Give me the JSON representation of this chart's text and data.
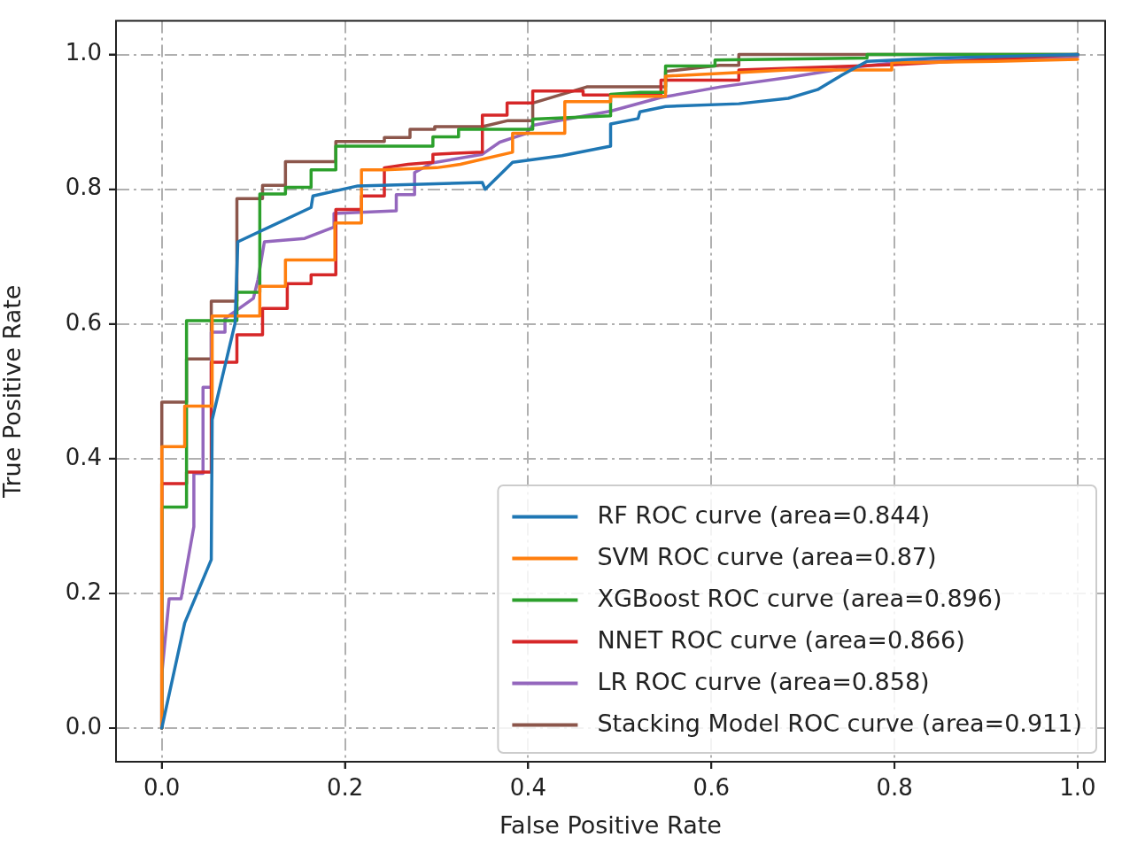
{
  "chart_data": {
    "type": "line",
    "xlabel": "False Positive Rate",
    "ylabel": "True Positive Rate",
    "xlim": [
      -0.05,
      1.03
    ],
    "ylim": [
      -0.05,
      1.05
    ],
    "xticks": [
      {
        "value": 0,
        "label": "0.0"
      },
      {
        "value": 0.2,
        "label": "0.2"
      },
      {
        "value": 0.4,
        "label": "0.4"
      },
      {
        "value": 0.6,
        "label": "0.6"
      },
      {
        "value": 0.8,
        "label": "0.8"
      },
      {
        "value": 1,
        "label": "1.0"
      }
    ],
    "yticks": [
      {
        "value": 0,
        "label": "0.0"
      },
      {
        "value": 0.2,
        "label": "0.2"
      },
      {
        "value": 0.4,
        "label": "0.4"
      },
      {
        "value": 0.6,
        "label": "0.6"
      },
      {
        "value": 0.8,
        "label": "0.8"
      },
      {
        "value": 1,
        "label": "1.0"
      }
    ],
    "grid": true,
    "legend": "bottom right",
    "line_style": "solid",
    "series": [
      {
        "name": "RF ROC curve (area=0.844)",
        "color": "#1f77b4",
        "x": [
          0,
          0.025,
          0.054,
          0.055,
          0.08,
          0.083,
          0.163,
          0.165,
          0.214,
          0.35,
          0.353,
          0.383,
          0.437,
          0.49,
          0.49,
          0.52,
          0.522,
          0.55,
          0.63,
          0.684,
          0.716,
          0.743,
          0.77,
          0.85,
          1
        ],
        "values": [
          0,
          0.156,
          0.25,
          0.458,
          0.601,
          0.722,
          0.773,
          0.79,
          0.805,
          0.81,
          0.8,
          0.84,
          0.85,
          0.864,
          0.897,
          0.905,
          0.915,
          0.923,
          0.927,
          0.935,
          0.948,
          0.97,
          0.99,
          0.995,
          1
        ]
      },
      {
        "name": "SVM ROC curve (area=0.87)",
        "color": "#ff7f0e",
        "x": [
          0,
          0,
          0.025,
          0.025,
          0.055,
          0.055,
          0.107,
          0.107,
          0.135,
          0.135,
          0.189,
          0.189,
          0.218,
          0.218,
          0.243,
          0.3,
          0.326,
          0.383,
          0.383,
          0.44,
          0.44,
          0.49,
          0.49,
          0.55,
          0.55,
          0.684,
          0.797,
          0.797,
          0.91,
          1
        ],
        "values": [
          0,
          0.418,
          0.418,
          0.478,
          0.478,
          0.612,
          0.612,
          0.656,
          0.656,
          0.695,
          0.695,
          0.75,
          0.75,
          0.829,
          0.829,
          0.832,
          0.837,
          0.855,
          0.883,
          0.883,
          0.93,
          0.93,
          0.938,
          0.938,
          0.968,
          0.977,
          0.977,
          0.988,
          0.99,
          0.993
        ]
      },
      {
        "name": "XGBoost ROC curve (area=0.896)",
        "color": "#2ca02c",
        "x": [
          0,
          0,
          0.027,
          0.027,
          0.082,
          0.082,
          0.107,
          0.107,
          0.135,
          0.135,
          0.163,
          0.163,
          0.19,
          0.19,
          0.296,
          0.296,
          0.324,
          0.324,
          0.405,
          0.405,
          0.49,
          0.49,
          0.523,
          0.55,
          0.55,
          0.604,
          0.604,
          0.77,
          0.77,
          1
        ],
        "values": [
          0,
          0.328,
          0.328,
          0.605,
          0.605,
          0.647,
          0.647,
          0.793,
          0.793,
          0.803,
          0.803,
          0.829,
          0.829,
          0.864,
          0.864,
          0.878,
          0.878,
          0.889,
          0.889,
          0.904,
          0.909,
          0.941,
          0.944,
          0.944,
          0.983,
          0.983,
          0.992,
          0.995,
          1,
          1
        ]
      },
      {
        "name": "NNET ROC curve (area=0.866)",
        "color": "#d62728",
        "x": [
          0,
          0,
          0.027,
          0.027,
          0.054,
          0.054,
          0.082,
          0.082,
          0.11,
          0.11,
          0.137,
          0.137,
          0.163,
          0.163,
          0.19,
          0.19,
          0.218,
          0.218,
          0.243,
          0.243,
          0.269,
          0.296,
          0.296,
          0.35,
          0.35,
          0.377,
          0.377,
          0.405,
          0.405,
          0.46,
          0.46,
          0.545,
          0.545,
          0.63,
          0.63,
          0.8,
          1
        ],
        "values": [
          0,
          0.363,
          0.363,
          0.38,
          0.38,
          0.543,
          0.543,
          0.584,
          0.584,
          0.623,
          0.623,
          0.66,
          0.66,
          0.673,
          0.673,
          0.77,
          0.77,
          0.79,
          0.79,
          0.832,
          0.837,
          0.84,
          0.852,
          0.855,
          0.91,
          0.91,
          0.928,
          0.928,
          0.946,
          0.946,
          0.94,
          0.94,
          0.962,
          0.962,
          0.977,
          0.985,
          1
        ]
      },
      {
        "name": "LR ROC curve (area=0.858)",
        "color": "#9467bd",
        "x": [
          0,
          0,
          0.008,
          0.021,
          0.035,
          0.035,
          0.045,
          0.045,
          0.054,
          0.054,
          0.069,
          0.069,
          0.1,
          0.105,
          0.112,
          0.156,
          0.188,
          0.188,
          0.256,
          0.256,
          0.276,
          0.276,
          0.295,
          0.35,
          0.369,
          0.398,
          0.405,
          0.49,
          0.544,
          0.61,
          0.684,
          0.749,
          0.8,
          1
        ],
        "values": [
          0,
          0.08,
          0.192,
          0.192,
          0.299,
          0.378,
          0.378,
          0.506,
          0.506,
          0.588,
          0.588,
          0.608,
          0.638,
          0.666,
          0.722,
          0.727,
          0.744,
          0.764,
          0.768,
          0.792,
          0.792,
          0.825,
          0.839,
          0.852,
          0.87,
          0.883,
          0.895,
          0.916,
          0.936,
          0.952,
          0.966,
          0.98,
          0.988,
          0.997
        ]
      },
      {
        "name": "Stacking Model ROC curve (area=0.911)",
        "color": "#8c564b",
        "x": [
          0,
          0,
          0.027,
          0.027,
          0.054,
          0.054,
          0.082,
          0.082,
          0.11,
          0.11,
          0.135,
          0.135,
          0.19,
          0.19,
          0.243,
          0.243,
          0.271,
          0.271,
          0.298,
          0.298,
          0.35,
          0.378,
          0.405,
          0.405,
          0.464,
          0.55,
          0.55,
          0.609,
          0.63,
          0.63,
          1
        ],
        "values": [
          0,
          0.484,
          0.484,
          0.548,
          0.548,
          0.634,
          0.634,
          0.786,
          0.786,
          0.806,
          0.806,
          0.841,
          0.841,
          0.871,
          0.871,
          0.877,
          0.877,
          0.889,
          0.889,
          0.893,
          0.893,
          0.902,
          0.902,
          0.928,
          0.952,
          0.952,
          0.975,
          0.984,
          0.984,
          1,
          1
        ]
      }
    ]
  }
}
